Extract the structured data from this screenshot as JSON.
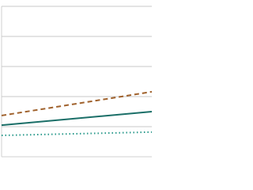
{
  "chart_data": {
    "type": "line",
    "categories": [
      null,
      null
    ],
    "series": [
      {
        "color": "#a0622d",
        "dash": "dashed",
        "values": [
          1.37,
          2.16
        ]
      },
      {
        "color": "#1b6f68",
        "dash": "solid",
        "values": [
          1.05,
          1.5
        ]
      },
      {
        "color": "#2b9a8c",
        "dash": "dotted",
        "values": [
          0.71,
          0.82
        ]
      }
    ],
    "ylim": [
      0,
      5
    ],
    "yticks": [
      1,
      2,
      3,
      4,
      5
    ],
    "grid": true
  }
}
